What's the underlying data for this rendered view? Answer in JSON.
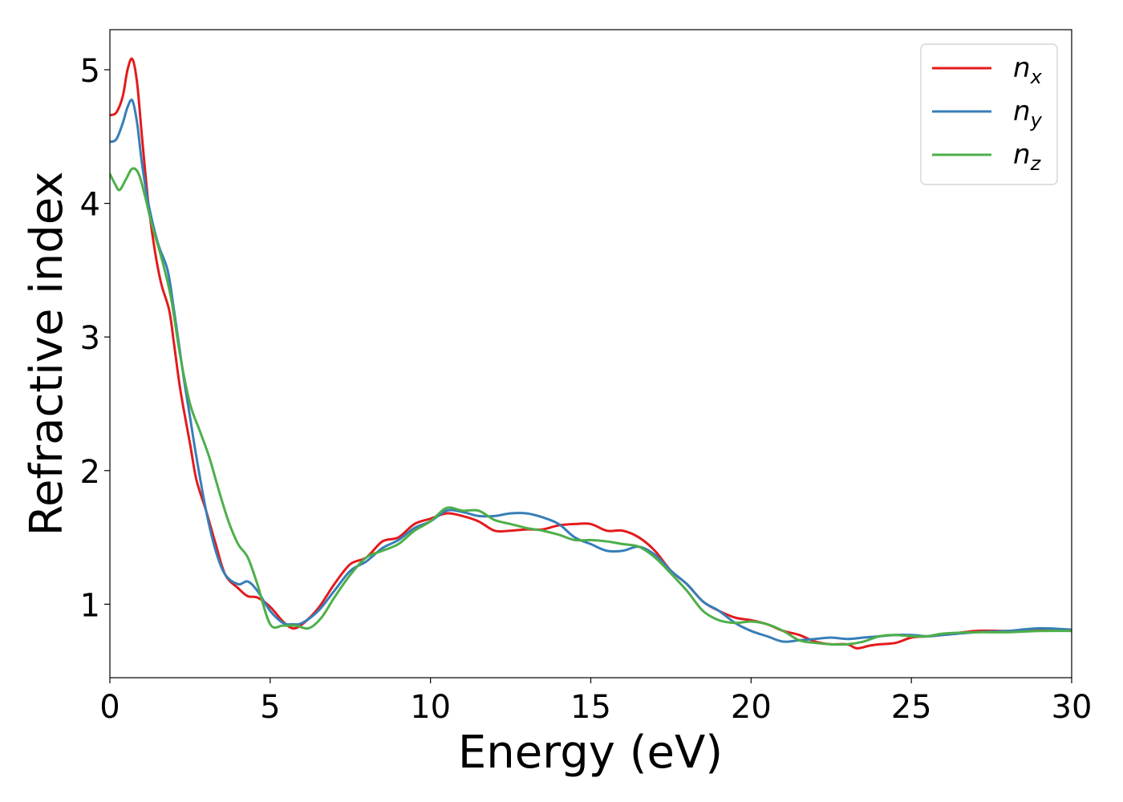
{
  "chart_data": {
    "type": "line",
    "title": "",
    "xlabel": "Energy (eV)",
    "ylabel": "Refractive index",
    "xlim": [
      0,
      30
    ],
    "ylim": [
      0.45,
      5.3
    ],
    "xticks": [
      0,
      5,
      10,
      15,
      20,
      25,
      30
    ],
    "yticks": [
      1,
      2,
      3,
      4,
      5
    ],
    "grid": false,
    "legend_position": "top-right",
    "series": [
      {
        "name": "n",
        "subscript": "x",
        "color": "#e41a1c",
        "points": [
          [
            0,
            4.66
          ],
          [
            0.2,
            4.68
          ],
          [
            0.4,
            4.8
          ],
          [
            0.55,
            5.0
          ],
          [
            0.7,
            5.08
          ],
          [
            0.85,
            4.9
          ],
          [
            1.0,
            4.5
          ],
          [
            1.2,
            4.0
          ],
          [
            1.4,
            3.65
          ],
          [
            1.6,
            3.4
          ],
          [
            1.85,
            3.2
          ],
          [
            2.0,
            2.95
          ],
          [
            2.2,
            2.6
          ],
          [
            2.5,
            2.2
          ],
          [
            2.7,
            1.93
          ],
          [
            3.0,
            1.7
          ],
          [
            3.3,
            1.45
          ],
          [
            3.6,
            1.22
          ],
          [
            4.0,
            1.12
          ],
          [
            4.3,
            1.06
          ],
          [
            4.6,
            1.05
          ],
          [
            5.0,
            0.98
          ],
          [
            5.4,
            0.87
          ],
          [
            5.7,
            0.82
          ],
          [
            6.0,
            0.85
          ],
          [
            6.5,
            0.97
          ],
          [
            7.0,
            1.15
          ],
          [
            7.5,
            1.3
          ],
          [
            8.0,
            1.35
          ],
          [
            8.5,
            1.47
          ],
          [
            9.0,
            1.5
          ],
          [
            9.5,
            1.6
          ],
          [
            10.0,
            1.64
          ],
          [
            10.5,
            1.68
          ],
          [
            11.0,
            1.66
          ],
          [
            11.5,
            1.62
          ],
          [
            12.0,
            1.55
          ],
          [
            12.5,
            1.55
          ],
          [
            13.0,
            1.56
          ],
          [
            13.5,
            1.56
          ],
          [
            14.0,
            1.59
          ],
          [
            14.5,
            1.6
          ],
          [
            15.0,
            1.6
          ],
          [
            15.5,
            1.55
          ],
          [
            16.0,
            1.55
          ],
          [
            16.5,
            1.5
          ],
          [
            17.0,
            1.4
          ],
          [
            17.5,
            1.25
          ],
          [
            18.0,
            1.15
          ],
          [
            18.5,
            1.02
          ],
          [
            19.0,
            0.95
          ],
          [
            19.5,
            0.9
          ],
          [
            20.0,
            0.88
          ],
          [
            20.5,
            0.85
          ],
          [
            21.0,
            0.8
          ],
          [
            21.5,
            0.77
          ],
          [
            22.0,
            0.72
          ],
          [
            22.5,
            0.7
          ],
          [
            23.0,
            0.7
          ],
          [
            23.3,
            0.67
          ],
          [
            23.7,
            0.69
          ],
          [
            24.0,
            0.7
          ],
          [
            24.5,
            0.71
          ],
          [
            25.0,
            0.75
          ],
          [
            25.5,
            0.76
          ],
          [
            26.0,
            0.77
          ],
          [
            27.0,
            0.8
          ],
          [
            28.0,
            0.8
          ],
          [
            29.0,
            0.81
          ],
          [
            30.0,
            0.81
          ]
        ]
      },
      {
        "name": "n",
        "subscript": "y",
        "color": "#377eb8",
        "points": [
          [
            0,
            4.46
          ],
          [
            0.2,
            4.48
          ],
          [
            0.4,
            4.6
          ],
          [
            0.55,
            4.72
          ],
          [
            0.7,
            4.77
          ],
          [
            0.85,
            4.6
          ],
          [
            1.0,
            4.3
          ],
          [
            1.2,
            4.0
          ],
          [
            1.5,
            3.7
          ],
          [
            1.8,
            3.5
          ],
          [
            2.0,
            3.2
          ],
          [
            2.3,
            2.7
          ],
          [
            2.5,
            2.4
          ],
          [
            2.7,
            2.1
          ],
          [
            3.0,
            1.7
          ],
          [
            3.3,
            1.4
          ],
          [
            3.6,
            1.22
          ],
          [
            4.0,
            1.15
          ],
          [
            4.3,
            1.17
          ],
          [
            4.6,
            1.1
          ],
          [
            5.0,
            0.95
          ],
          [
            5.4,
            0.86
          ],
          [
            5.7,
            0.85
          ],
          [
            6.0,
            0.86
          ],
          [
            6.5,
            0.95
          ],
          [
            7.0,
            1.1
          ],
          [
            7.5,
            1.25
          ],
          [
            8.0,
            1.32
          ],
          [
            8.5,
            1.42
          ],
          [
            9.0,
            1.48
          ],
          [
            9.5,
            1.57
          ],
          [
            10.0,
            1.62
          ],
          [
            10.5,
            1.7
          ],
          [
            11.0,
            1.69
          ],
          [
            11.5,
            1.66
          ],
          [
            12.0,
            1.66
          ],
          [
            12.5,
            1.68
          ],
          [
            13.0,
            1.68
          ],
          [
            13.5,
            1.65
          ],
          [
            14.0,
            1.6
          ],
          [
            14.5,
            1.5
          ],
          [
            15.0,
            1.45
          ],
          [
            15.5,
            1.4
          ],
          [
            16.0,
            1.4
          ],
          [
            16.5,
            1.43
          ],
          [
            17.0,
            1.37
          ],
          [
            17.5,
            1.25
          ],
          [
            18.0,
            1.15
          ],
          [
            18.5,
            1.02
          ],
          [
            19.0,
            0.95
          ],
          [
            19.5,
            0.86
          ],
          [
            20.0,
            0.8
          ],
          [
            20.5,
            0.76
          ],
          [
            21.0,
            0.72
          ],
          [
            21.5,
            0.73
          ],
          [
            22.0,
            0.74
          ],
          [
            22.5,
            0.75
          ],
          [
            23.0,
            0.74
          ],
          [
            23.5,
            0.75
          ],
          [
            24.0,
            0.76
          ],
          [
            24.5,
            0.77
          ],
          [
            25.0,
            0.77
          ],
          [
            25.5,
            0.76
          ],
          [
            26.0,
            0.77
          ],
          [
            27.0,
            0.79
          ],
          [
            28.0,
            0.8
          ],
          [
            29.0,
            0.82
          ],
          [
            30.0,
            0.81
          ]
        ]
      },
      {
        "name": "n",
        "subscript": "z",
        "color": "#4daf4a",
        "points": [
          [
            0,
            4.22
          ],
          [
            0.15,
            4.15
          ],
          [
            0.3,
            4.1
          ],
          [
            0.5,
            4.18
          ],
          [
            0.7,
            4.26
          ],
          [
            0.9,
            4.22
          ],
          [
            1.1,
            4.05
          ],
          [
            1.3,
            3.85
          ],
          [
            1.6,
            3.6
          ],
          [
            1.9,
            3.3
          ],
          [
            2.2,
            2.85
          ],
          [
            2.5,
            2.5
          ],
          [
            2.8,
            2.3
          ],
          [
            3.1,
            2.1
          ],
          [
            3.4,
            1.85
          ],
          [
            3.7,
            1.62
          ],
          [
            4.0,
            1.45
          ],
          [
            4.3,
            1.35
          ],
          [
            4.6,
            1.15
          ],
          [
            5.0,
            0.85
          ],
          [
            5.4,
            0.84
          ],
          [
            5.8,
            0.84
          ],
          [
            6.2,
            0.82
          ],
          [
            6.6,
            0.9
          ],
          [
            7.0,
            1.05
          ],
          [
            7.5,
            1.22
          ],
          [
            8.0,
            1.35
          ],
          [
            8.5,
            1.4
          ],
          [
            9.0,
            1.45
          ],
          [
            9.5,
            1.55
          ],
          [
            10.0,
            1.62
          ],
          [
            10.5,
            1.72
          ],
          [
            11.0,
            1.7
          ],
          [
            11.5,
            1.7
          ],
          [
            12.0,
            1.63
          ],
          [
            12.5,
            1.6
          ],
          [
            13.0,
            1.57
          ],
          [
            13.5,
            1.55
          ],
          [
            14.0,
            1.52
          ],
          [
            14.5,
            1.48
          ],
          [
            15.0,
            1.48
          ],
          [
            15.5,
            1.47
          ],
          [
            16.0,
            1.45
          ],
          [
            16.5,
            1.43
          ],
          [
            17.0,
            1.35
          ],
          [
            17.5,
            1.23
          ],
          [
            18.0,
            1.1
          ],
          [
            18.5,
            0.95
          ],
          [
            19.0,
            0.88
          ],
          [
            19.5,
            0.86
          ],
          [
            20.0,
            0.87
          ],
          [
            20.5,
            0.85
          ],
          [
            21.0,
            0.8
          ],
          [
            21.5,
            0.73
          ],
          [
            22.0,
            0.71
          ],
          [
            22.5,
            0.7
          ],
          [
            23.0,
            0.7
          ],
          [
            23.5,
            0.72
          ],
          [
            24.0,
            0.76
          ],
          [
            24.5,
            0.77
          ],
          [
            25.0,
            0.76
          ],
          [
            25.5,
            0.76
          ],
          [
            26.0,
            0.78
          ],
          [
            27.0,
            0.79
          ],
          [
            28.0,
            0.79
          ],
          [
            29.0,
            0.8
          ],
          [
            30.0,
            0.8
          ]
        ]
      }
    ]
  }
}
